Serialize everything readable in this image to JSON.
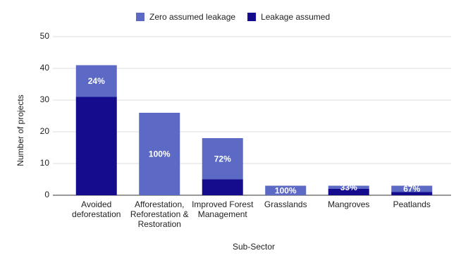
{
  "chart_data": {
    "type": "stacked_bar",
    "x_label": "Sub-Sector",
    "y_label": "Number of projects",
    "categories": [
      "Avoided deforestation",
      "Afforestation, Reforestation & Restoration",
      "Improved Forest Management",
      "Grasslands",
      "Mangroves",
      "Peatlands"
    ],
    "series": [
      {
        "name": "Leakage assumed",
        "color": "#140c8c",
        "values": [
          31,
          0,
          5,
          0,
          2,
          1
        ]
      },
      {
        "name": "Zero assumed leakage",
        "color": "#5c6ac6",
        "values": [
          10,
          26,
          13,
          3,
          1,
          2
        ]
      }
    ],
    "annotations": [
      "24%",
      "100%",
      "72%",
      "100%",
      "33%",
      "67%"
    ],
    "legend_order": [
      1,
      0
    ],
    "ylim": [
      0,
      50
    ],
    "yticks": [
      0,
      10,
      20,
      30,
      40,
      50
    ],
    "grid": true
  }
}
